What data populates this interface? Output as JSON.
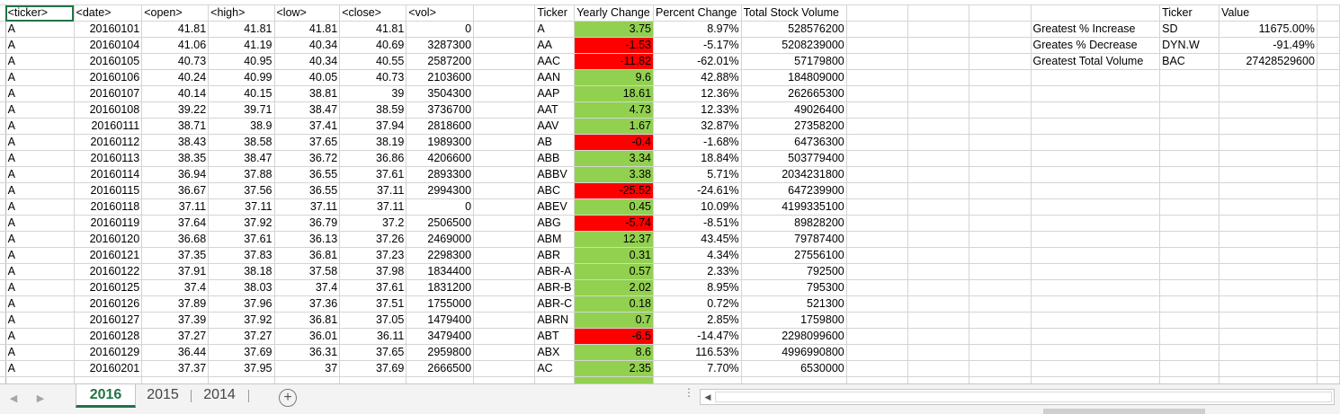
{
  "columns": {
    "ticker": "<ticker>",
    "date": "<date>",
    "open": "<open>",
    "high": "<high>",
    "low": "<low>",
    "close": "<close>",
    "vol": "<vol>",
    "summary_ticker": "Ticker",
    "yearly_change": "Yearly Change",
    "percent_change": "Percent Change",
    "total_volume": "Total Stock Volume",
    "greatest_ticker": "Ticker",
    "greatest_value": "Value"
  },
  "raw_rows": [
    [
      "A",
      "20160101",
      "41.81",
      "41.81",
      "41.81",
      "41.81",
      "0"
    ],
    [
      "A",
      "20160104",
      "41.06",
      "41.19",
      "40.34",
      "40.69",
      "3287300"
    ],
    [
      "A",
      "20160105",
      "40.73",
      "40.95",
      "40.34",
      "40.55",
      "2587200"
    ],
    [
      "A",
      "20160106",
      "40.24",
      "40.99",
      "40.05",
      "40.73",
      "2103600"
    ],
    [
      "A",
      "20160107",
      "40.14",
      "40.15",
      "38.81",
      "39",
      "3504300"
    ],
    [
      "A",
      "20160108",
      "39.22",
      "39.71",
      "38.47",
      "38.59",
      "3736700"
    ],
    [
      "A",
      "20160111",
      "38.71",
      "38.9",
      "37.41",
      "37.94",
      "2818600"
    ],
    [
      "A",
      "20160112",
      "38.43",
      "38.58",
      "37.65",
      "38.19",
      "1989300"
    ],
    [
      "A",
      "20160113",
      "38.35",
      "38.47",
      "36.72",
      "36.86",
      "4206600"
    ],
    [
      "A",
      "20160114",
      "36.94",
      "37.88",
      "36.55",
      "37.61",
      "2893300"
    ],
    [
      "A",
      "20160115",
      "36.67",
      "37.56",
      "36.55",
      "37.11",
      "2994300"
    ],
    [
      "A",
      "20160118",
      "37.11",
      "37.11",
      "37.11",
      "37.11",
      "0"
    ],
    [
      "A",
      "20160119",
      "37.64",
      "37.92",
      "36.79",
      "37.2",
      "2506500"
    ],
    [
      "A",
      "20160120",
      "36.68",
      "37.61",
      "36.13",
      "37.26",
      "2469000"
    ],
    [
      "A",
      "20160121",
      "37.35",
      "37.83",
      "36.81",
      "37.23",
      "2298300"
    ],
    [
      "A",
      "20160122",
      "37.91",
      "38.18",
      "37.58",
      "37.98",
      "1834400"
    ],
    [
      "A",
      "20160125",
      "37.4",
      "38.03",
      "37.4",
      "37.61",
      "1831200"
    ],
    [
      "A",
      "20160126",
      "37.89",
      "37.96",
      "37.36",
      "37.51",
      "1755000"
    ],
    [
      "A",
      "20160127",
      "37.39",
      "37.92",
      "36.81",
      "37.05",
      "1479400"
    ],
    [
      "A",
      "20160128",
      "37.27",
      "37.27",
      "36.01",
      "36.11",
      "3479400"
    ],
    [
      "A",
      "20160129",
      "36.44",
      "37.69",
      "36.31",
      "37.65",
      "2959800"
    ],
    [
      "A",
      "20160201",
      "37.37",
      "37.95",
      "37",
      "37.69",
      "2666500"
    ]
  ],
  "summary_rows": [
    {
      "ticker": "A",
      "change": "3.75",
      "percent": "8.97%",
      "volume": "528576200",
      "positive": true
    },
    {
      "ticker": "AA",
      "change": "-1.53",
      "percent": "-5.17%",
      "volume": "5208239000",
      "positive": false
    },
    {
      "ticker": "AAC",
      "change": "-11.82",
      "percent": "-62.01%",
      "volume": "57179800",
      "positive": false
    },
    {
      "ticker": "AAN",
      "change": "9.6",
      "percent": "42.88%",
      "volume": "184809000",
      "positive": true
    },
    {
      "ticker": "AAP",
      "change": "18.61",
      "percent": "12.36%",
      "volume": "262665300",
      "positive": true
    },
    {
      "ticker": "AAT",
      "change": "4.73",
      "percent": "12.33%",
      "volume": "49026400",
      "positive": true
    },
    {
      "ticker": "AAV",
      "change": "1.67",
      "percent": "32.87%",
      "volume": "27358200",
      "positive": true
    },
    {
      "ticker": "AB",
      "change": "-0.4",
      "percent": "-1.68%",
      "volume": "64736300",
      "positive": false
    },
    {
      "ticker": "ABB",
      "change": "3.34",
      "percent": "18.84%",
      "volume": "503779400",
      "positive": true
    },
    {
      "ticker": "ABBV",
      "change": "3.38",
      "percent": "5.71%",
      "volume": "2034231800",
      "positive": true
    },
    {
      "ticker": "ABC",
      "change": "-25.52",
      "percent": "-24.61%",
      "volume": "647239900",
      "positive": false
    },
    {
      "ticker": "ABEV",
      "change": "0.45",
      "percent": "10.09%",
      "volume": "4199335100",
      "positive": true
    },
    {
      "ticker": "ABG",
      "change": "-5.74",
      "percent": "-8.51%",
      "volume": "89828200",
      "positive": false
    },
    {
      "ticker": "ABM",
      "change": "12.37",
      "percent": "43.45%",
      "volume": "79787400",
      "positive": true
    },
    {
      "ticker": "ABR",
      "change": "0.31",
      "percent": "4.34%",
      "volume": "27556100",
      "positive": true
    },
    {
      "ticker": "ABR-A",
      "change": "0.57",
      "percent": "2.33%",
      "volume": "792500",
      "positive": true
    },
    {
      "ticker": "ABR-B",
      "change": "2.02",
      "percent": "8.95%",
      "volume": "795300",
      "positive": true
    },
    {
      "ticker": "ABR-C",
      "change": "0.18",
      "percent": "0.72%",
      "volume": "521300",
      "positive": true
    },
    {
      "ticker": "ABRN",
      "change": "0.7",
      "percent": "2.85%",
      "volume": "1759800",
      "positive": true
    },
    {
      "ticker": "ABT",
      "change": "-6.5",
      "percent": "-14.47%",
      "volume": "2298099600",
      "positive": false
    },
    {
      "ticker": "ABX",
      "change": "8.6",
      "percent": "116.53%",
      "volume": "4996990800",
      "positive": true
    },
    {
      "ticker": "AC",
      "change": "2.35",
      "percent": "7.70%",
      "volume": "6530000",
      "positive": true
    }
  ],
  "greatest": [
    {
      "label": "Greatest % Increase",
      "ticker": "SD",
      "value": "11675.00%"
    },
    {
      "label": "Greates % Decrease",
      "ticker": "DYN.W",
      "value": "-91.49%"
    },
    {
      "label": "Greatest Total Volume",
      "ticker": "BAC",
      "value": "27428529600"
    }
  ],
  "colors": {
    "positive": "#92d050",
    "negative": "#ff0000",
    "accent": "#217346"
  },
  "sheets": {
    "tabs": [
      "2016",
      "2015",
      "2014"
    ],
    "active": "2016",
    "add_icon": "+"
  }
}
